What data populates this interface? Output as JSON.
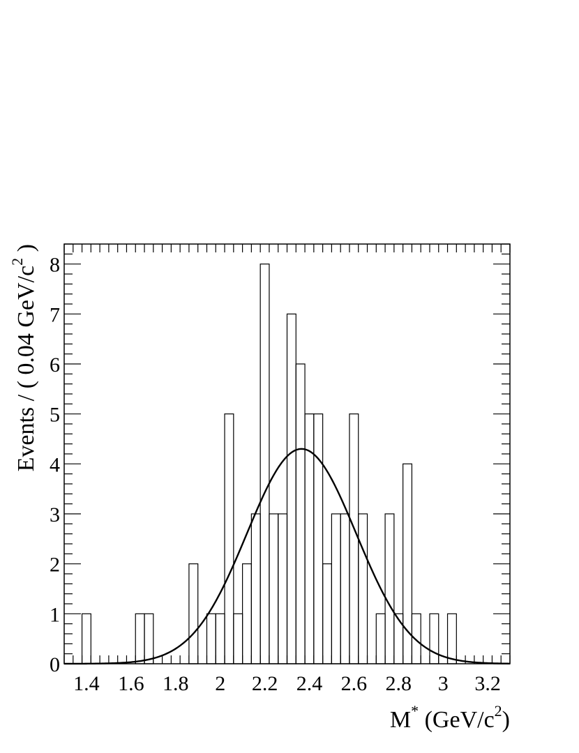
{
  "chart_data": {
    "type": "bar",
    "title": "",
    "xlabel": {
      "base": "M",
      "sup": "*",
      "unit_open": " (GeV/c",
      "unit_sup": "2",
      "unit_close": ")"
    },
    "ylabel": {
      "prefix": "Events / ( 0.04 GeV/c",
      "sup": "2",
      "suffix": " )"
    },
    "xlim": [
      1.3,
      3.3
    ],
    "ylim": [
      0,
      8.4
    ],
    "bin_width": 0.04,
    "x_ticks": [
      1.4,
      1.6,
      1.8,
      2.0,
      2.2,
      2.4,
      2.6,
      2.8,
      3.0,
      3.2
    ],
    "x_tick_labels": [
      "1.4",
      "1.6",
      "1.8",
      "2",
      "2.2",
      "2.4",
      "2.6",
      "2.8",
      "3",
      "3.2"
    ],
    "y_ticks": [
      0,
      1,
      2,
      3,
      4,
      5,
      6,
      7,
      8
    ],
    "y_tick_labels": [
      "0",
      "1",
      "2",
      "3",
      "4",
      "5",
      "6",
      "7",
      "8"
    ],
    "histogram": {
      "bin_low_edges": [
        1.38,
        1.62,
        1.66,
        1.86,
        1.94,
        1.98,
        2.02,
        2.06,
        2.1,
        2.14,
        2.18,
        2.22,
        2.26,
        2.3,
        2.34,
        2.38,
        2.42,
        2.46,
        2.5,
        2.54,
        2.58,
        2.62,
        2.7,
        2.74,
        2.78,
        2.82,
        2.86,
        2.94,
        3.02
      ],
      "counts": [
        1,
        1,
        1,
        2,
        1,
        1,
        5,
        1,
        2,
        3,
        8,
        3,
        3,
        7,
        6,
        5,
        5,
        2,
        3,
        3,
        5,
        3,
        1,
        3,
        1,
        4,
        1,
        1,
        1
      ]
    },
    "fit": {
      "model": "gaussian",
      "mean": 2.365,
      "sigma": 0.245,
      "amplitude": 4.3
    }
  }
}
